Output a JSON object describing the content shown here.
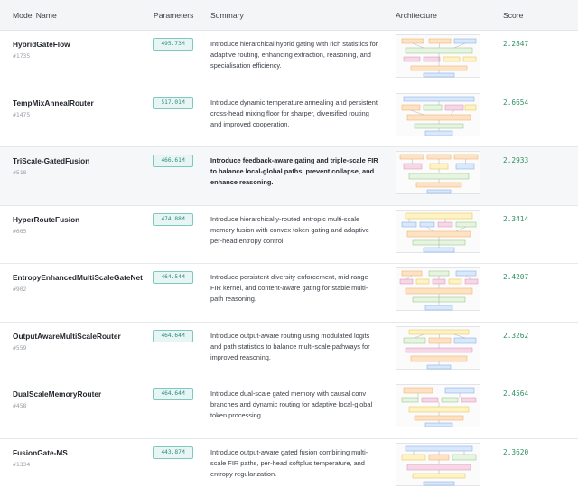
{
  "header": {
    "model_name": "Model Name",
    "parameters": "Parameters",
    "summary": "Summary",
    "architecture": "Architecture",
    "score": "Score"
  },
  "rows": [
    {
      "name": "HybridGateFlow",
      "id": "#1735",
      "params": "495.73M",
      "summary": "Introduce hierarchical hybrid gating with rich statistics for adaptive routing, enhancing extraction, reasoning, and specialisation efficiency.",
      "score": "2.2847"
    },
    {
      "name": "TempMixAnnealRouter",
      "id": "#1475",
      "params": "517.01M",
      "summary": "Introduce dynamic temperature annealing and persistent cross-head mixing floor for sharper, diversified routing and improved cooperation.",
      "score": "2.6654"
    },
    {
      "name": "TriScale-GatedFusion",
      "id": "#518",
      "params": "466.61M",
      "summary": "Introduce feedback-aware gating and triple-scale FIR to balance local-global paths, prevent collapse, and enhance reasoning.",
      "score": "2.2933"
    },
    {
      "name": "HyperRouteFusion",
      "id": "#665",
      "params": "474.88M",
      "summary": "Introduce hierarchically-routed entropic multi-scale memory fusion with convex token gating and adaptive per-head entropy control.",
      "score": "2.3414"
    },
    {
      "name": "EntropyEnhancedMultiScaleGateNet",
      "id": "#902",
      "params": "464.54M",
      "summary": "Introduce persistent diversity enforcement, mid-range FIR kernel, and content-aware gating for stable multi-path reasoning.",
      "score": "2.4207"
    },
    {
      "name": "OutputAwareMultiScaleRouter",
      "id": "#559",
      "params": "464.64M",
      "summary": "Introduce output-aware routing using modulated logits and path statistics to balance multi-scale pathways for improved reasoning.",
      "score": "2.3262"
    },
    {
      "name": "DualScaleMemoryRouter",
      "id": "#458",
      "params": "464.64M",
      "summary": "Introduce dual-scale gated memory with causal conv branches and dynamic routing for adaptive local-global token processing.",
      "score": "2.4564"
    },
    {
      "name": "FusionGate-MS",
      "id": "#1334",
      "params": "443.87M",
      "summary": "Introduce output-aware gated fusion combining multi-scale FIR paths, per-head softplus temperature, and entropy regularization.",
      "score": "2.3620"
    }
  ]
}
